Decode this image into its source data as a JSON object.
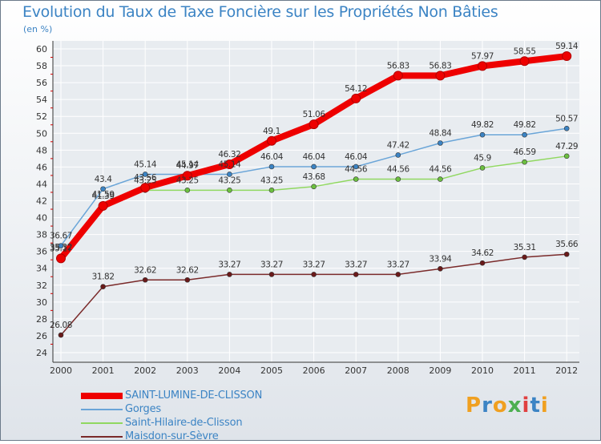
{
  "header": {
    "title": "Evolution du Taux de Taxe Foncière sur les Propriétés Non Bâties",
    "unit": "(en %)"
  },
  "logo": {
    "text": "Proxiti",
    "letter_colors": [
      "#f0a020",
      "#3c84c4",
      "#f0a020",
      "#4caf50",
      "#e04040",
      "#3c84c4",
      "#f0a020"
    ]
  },
  "colors": {
    "axis_text": "#333333",
    "grid": "#ffffff",
    "axis_line": "#333333",
    "tick_red": "#d00000"
  },
  "chart_data": {
    "type": "line",
    "x": [
      "2000",
      "2001",
      "2002",
      "2003",
      "2004",
      "2005",
      "2006",
      "2007",
      "2008",
      "2009",
      "2010",
      "2011",
      "2012"
    ],
    "ylim": [
      24,
      60
    ],
    "yticks": [
      24,
      26,
      28,
      30,
      32,
      34,
      36,
      38,
      40,
      42,
      44,
      46,
      48,
      50,
      52,
      54,
      56,
      58,
      60
    ],
    "grid": true,
    "legend_position": "bottom-left",
    "series": [
      {
        "name": "SAINT-LUMINE-DE-CLISSON",
        "color": "#ee0000",
        "width": 8,
        "values": [
          35.17,
          41.39,
          43.56,
          44.97,
          46.32,
          49.1,
          51.06,
          54.12,
          56.83,
          56.83,
          57.97,
          58.55,
          59.14
        ],
        "labels": [
          "35.17",
          "41.39",
          "43.56",
          "44.97",
          "46.32",
          "49.1",
          "51.06",
          "54.12",
          "56.83",
          "56.83",
          "57.97",
          "58.55",
          "59.14"
        ]
      },
      {
        "name": "Gorges",
        "color": "#6aa5d8",
        "marker": "#3c84c4",
        "width": 1.5,
        "values": [
          36.67,
          43.4,
          45.14,
          45.14,
          45.14,
          46.04,
          46.04,
          46.04,
          47.42,
          48.84,
          49.82,
          49.82,
          50.57
        ],
        "labels": [
          "36.67",
          "43.4",
          "45.14",
          "45.14",
          "45.14",
          "46.04",
          "46.04",
          "46.04",
          "47.42",
          "48.84",
          "49.82",
          "49.82",
          "50.57"
        ]
      },
      {
        "name": "Saint-Hilaire-de-Clisson",
        "color": "#90d860",
        "marker": "#6cc040",
        "width": 1.5,
        "values": [
          35.32,
          41.59,
          43.25,
          43.25,
          43.25,
          43.25,
          43.68,
          44.56,
          44.56,
          44.56,
          45.9,
          46.59,
          47.29
        ],
        "labels": [
          "35.32",
          "41.59",
          "43.25",
          "43.25",
          "43.25",
          "43.25",
          "43.68",
          "44.56",
          "44.56",
          "44.56",
          "45.9",
          "46.59",
          "47.29"
        ]
      },
      {
        "name": "Maisdon-sur-Sèvre",
        "color": "#7a2a2a",
        "marker": "#6a1a1a",
        "width": 1.5,
        "values": [
          26.08,
          31.82,
          32.62,
          32.62,
          33.27,
          33.27,
          33.27,
          33.27,
          33.27,
          33.94,
          34.62,
          35.31,
          35.66
        ],
        "labels": [
          "26.08",
          "31.82",
          "32.62",
          "32.62",
          "33.27",
          "33.27",
          "33.27",
          "33.27",
          "33.27",
          "33.94",
          "34.62",
          "35.31",
          "35.66"
        ]
      }
    ]
  },
  "legend": {
    "items": [
      {
        "label": "SAINT-LUMINE-DE-CLISSON",
        "color": "#ee0000",
        "thickness": 8
      },
      {
        "label": "Gorges",
        "color": "#6aa5d8",
        "thickness": 2
      },
      {
        "label": "Saint-Hilaire-de-Clisson",
        "color": "#90d860",
        "thickness": 2
      },
      {
        "label": "Maisdon-sur-Sèvre",
        "color": "#7a2a2a",
        "thickness": 2
      }
    ]
  }
}
